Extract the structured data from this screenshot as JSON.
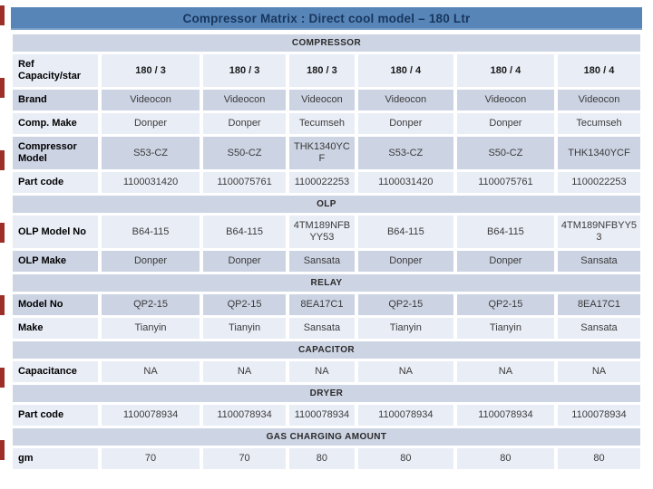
{
  "slide": {
    "title": "Compressor Matrix : Direct cool model – 180 Ltr"
  },
  "colors": {
    "title_bar_blue": "#5885b8",
    "title_text_navy": "#17365d",
    "band_dark": "#ccd3e3",
    "band_light": "#e9edf6",
    "section_header_bg": "#cdd4e3",
    "left_accent_red": "#9e2f28"
  },
  "table": {
    "sections": [
      {
        "header": "COMPRESSOR",
        "rows": [
          {
            "label": "Ref Capacity/star",
            "shade": "light",
            "bold": true,
            "values": [
              "180 / 3",
              "180 / 3",
              "180 / 3",
              "180 / 4",
              "180 / 4",
              "180 / 4"
            ]
          },
          {
            "label": "Brand",
            "shade": "dark",
            "bold": false,
            "values": [
              "Videocon",
              "Videocon",
              "Videocon",
              "Videocon",
              "Videocon",
              "Videocon"
            ]
          },
          {
            "label": "Comp. Make",
            "shade": "light",
            "bold": false,
            "values": [
              "Donper",
              "Donper",
              "Tecumseh",
              "Donper",
              "Donper",
              "Tecumseh"
            ]
          },
          {
            "label": "Compressor Model",
            "shade": "dark",
            "bold": false,
            "values": [
              "S53-CZ",
              "S50-CZ",
              "THK1340YCF",
              "S53-CZ",
              "S50-CZ",
              "THK1340YCF"
            ]
          },
          {
            "label": "Part code",
            "shade": "light",
            "bold": false,
            "values": [
              "1100031420",
              "1100075761",
              "1100022253",
              "1100031420",
              "1100075761",
              "1100022253"
            ]
          }
        ]
      },
      {
        "header": "OLP",
        "rows": [
          {
            "label": "OLP Model No",
            "shade": "light",
            "bold": false,
            "values": [
              "B64-115",
              "B64-115",
              "4TM189NFB YY53",
              "B64-115",
              "B64-115",
              "4TM189NFBYY53"
            ]
          },
          {
            "label": "OLP Make",
            "shade": "dark",
            "bold": false,
            "values": [
              "Donper",
              "Donper",
              "Sansata",
              "Donper",
              "Donper",
              "Sansata"
            ]
          }
        ]
      },
      {
        "header": "RELAY",
        "rows": [
          {
            "label": "Model No",
            "shade": "dark",
            "bold": false,
            "values": [
              "QP2-15",
              "QP2-15",
              "8EA17C1",
              "QP2-15",
              "QP2-15",
              "8EA17C1"
            ]
          },
          {
            "label": "Make",
            "shade": "light",
            "bold": false,
            "values": [
              "Tianyin",
              "Tianyin",
              "Sansata",
              "Tianyin",
              "Tianyin",
              "Sansata"
            ]
          }
        ]
      },
      {
        "header": "CAPACITOR",
        "rows": [
          {
            "label": "Capacitance",
            "shade": "light",
            "bold": false,
            "values": [
              "NA",
              "NA",
              "NA",
              "NA",
              "NA",
              "NA"
            ]
          }
        ]
      },
      {
        "header": "DRYER",
        "rows": [
          {
            "label": "Part code",
            "shade": "light",
            "bold": false,
            "values": [
              "1100078934",
              "1100078934",
              "1100078934",
              "1100078934",
              "1100078934",
              "1100078934"
            ]
          }
        ]
      },
      {
        "header": "GAS CHARGING AMOUNT",
        "rows": [
          {
            "label": "gm",
            "shade": "light",
            "bold": false,
            "values": [
              "70",
              "70",
              "80",
              "80",
              "80",
              "80"
            ]
          }
        ]
      }
    ]
  }
}
